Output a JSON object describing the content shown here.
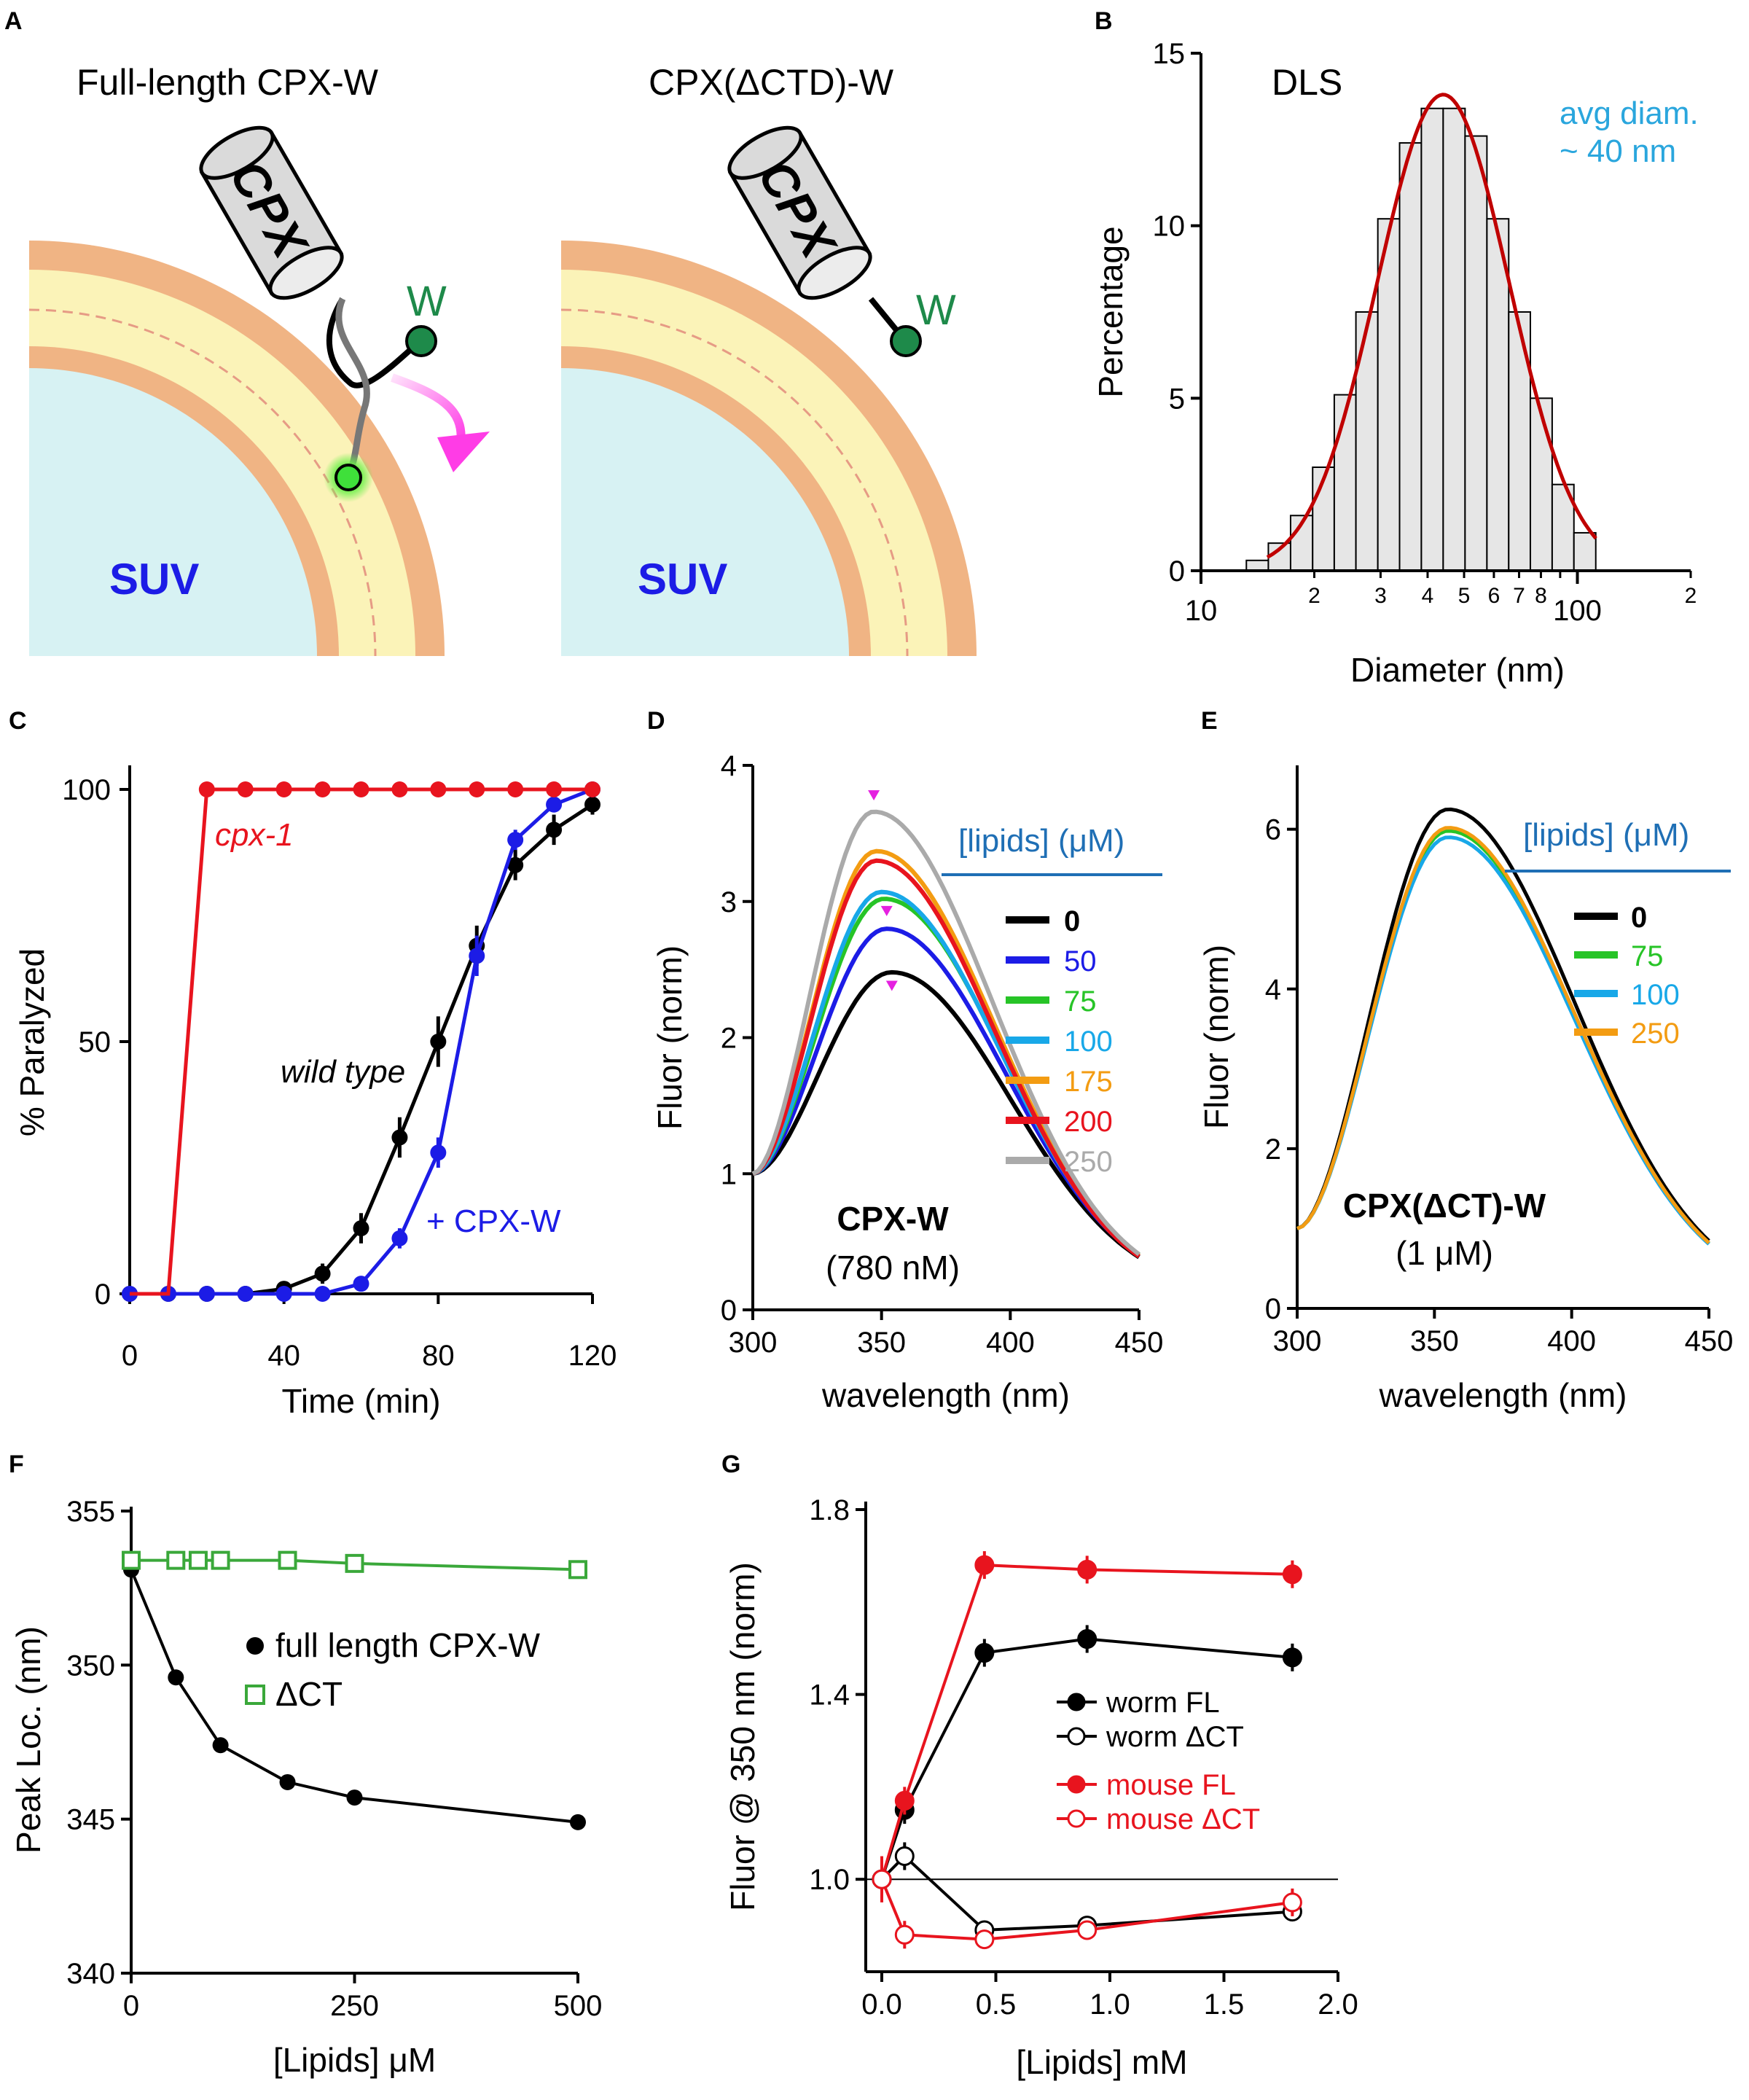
{
  "panels": {
    "A": {
      "letter": "A",
      "left_title": "Full-length CPX-W",
      "right_title": "CPX(ΔCTD)-W",
      "cpx_label": "CPX",
      "w_label": "W",
      "suv_label": "SUV",
      "colors": {
        "outer_membrane": "#f0b484",
        "inner_membrane": "#fbf3b8",
        "vesicle_lumen": "#d7f2f3",
        "tryptophan": "#1e8a4a",
        "arrow": "#ff3ce6"
      }
    },
    "B": {
      "letter": "B",
      "label": "DLS",
      "annotation_line1": "avg diam.",
      "annotation_line2": "~ 40 nm"
    },
    "C": {
      "letter": "C",
      "label_cpx1": "cpx-1",
      "label_wt": "wild type",
      "label_cpxw": "+ CPX-W"
    },
    "D": {
      "letter": "D",
      "label_construct": "CPX-W",
      "label_conc": "(780 nM)",
      "legend_title": "[lipids] (μM)"
    },
    "E": {
      "letter": "E",
      "label_construct": "CPX(ΔCT)-W",
      "label_conc": "(1 μM)",
      "legend_title": "[lipids] (μM)"
    },
    "F": {
      "letter": "F"
    },
    "G": {
      "letter": "G"
    }
  },
  "chart_data": [
    {
      "id": "B",
      "type": "bar",
      "title": "DLS",
      "xlabel": "Diameter (nm)",
      "ylabel": "Percentage",
      "xscale": "log",
      "xlim": [
        10,
        200
      ],
      "ylim": [
        0,
        15
      ],
      "yticks": [
        0,
        5,
        10,
        15
      ],
      "xtick_labels": [
        {
          "v": 10,
          "t": "10"
        },
        {
          "v": 20,
          "t": "2"
        },
        {
          "v": 30,
          "t": "3"
        },
        {
          "v": 40,
          "t": "4"
        },
        {
          "v": 50,
          "t": "5"
        },
        {
          "v": 60,
          "t": "6"
        },
        {
          "v": 70,
          "t": "7"
        },
        {
          "v": 80,
          "t": "8"
        },
        {
          "v": 100,
          "t": "100"
        },
        {
          "v": 200,
          "t": "2"
        }
      ],
      "bin_edges": [
        13.2,
        15.1,
        17.3,
        19.8,
        22.6,
        25.8,
        29.5,
        33.7,
        38.5,
        44.0,
        50.3,
        57.5,
        65.7,
        75.0,
        85.7,
        97.9,
        111.9
      ],
      "values": [
        0.3,
        0.8,
        1.6,
        3.0,
        5.1,
        7.5,
        10.2,
        12.4,
        13.4,
        13.4,
        12.6,
        10.2,
        7.5,
        5.0,
        2.5,
        1.1
      ],
      "fit": {
        "name": "lognormal fit",
        "amplitude": 13.8,
        "center": 44,
        "sigma_log10": 0.175,
        "range": [
          15,
          112
        ],
        "color": "#c00000"
      }
    },
    {
      "id": "C",
      "type": "line",
      "xlabel": "Time (min)",
      "ylabel": "% Paralyzed",
      "xlim": [
        0,
        120
      ],
      "ylim": [
        0,
        100
      ],
      "xticks": [
        0,
        40,
        80,
        120
      ],
      "yticks": [
        0,
        50,
        100
      ],
      "series": [
        {
          "name": "cpx-1",
          "color": "#e8141e",
          "x": [
            0,
            10,
            20,
            30,
            40,
            50,
            60,
            70,
            80,
            90,
            100,
            110,
            120
          ],
          "y": [
            0,
            0,
            100,
            100,
            100,
            100,
            100,
            100,
            100,
            100,
            100,
            100,
            100
          ],
          "err": [
            0,
            0,
            0,
            0,
            0,
            0,
            0,
            0,
            0,
            0,
            0,
            0,
            0
          ],
          "markers_from": 2
        },
        {
          "name": "wild type",
          "color": "#000000",
          "x": [
            0,
            10,
            20,
            30,
            40,
            50,
            60,
            70,
            80,
            90,
            100,
            110,
            120
          ],
          "y": [
            0,
            0,
            0,
            0,
            1,
            4,
            13,
            31,
            50,
            69,
            85,
            92,
            97
          ],
          "err": [
            0,
            0,
            0,
            0,
            0,
            2,
            3,
            4,
            5,
            4,
            3,
            3,
            2
          ],
          "markers_from": 0
        },
        {
          "name": "+ CPX-W",
          "color": "#1c1ce6",
          "x": [
            0,
            10,
            20,
            30,
            40,
            50,
            60,
            70,
            80,
            90,
            100,
            110,
            120
          ],
          "y": [
            0,
            0,
            0,
            0,
            0,
            0,
            2,
            11,
            28,
            67,
            90,
            97,
            100
          ],
          "err": [
            0,
            0,
            0,
            0,
            0,
            0,
            0,
            2,
            3,
            4,
            2,
            1,
            0
          ],
          "markers_from": 0
        }
      ]
    },
    {
      "id": "D",
      "type": "line",
      "xlabel": "wavelength (nm)",
      "ylabel": "Fluor (norm)",
      "xlim": [
        300,
        450
      ],
      "ylim": [
        0,
        4
      ],
      "xticks": [
        300,
        350,
        400,
        450
      ],
      "yticks": [
        0,
        1,
        2,
        3,
        4
      ],
      "series": [
        {
          "name": "0",
          "color": "#000000",
          "peak_x": 354,
          "peak_y": 2.48
        },
        {
          "name": "50",
          "color": "#1c1ce6",
          "peak_x": 352,
          "peak_y": 2.8
        },
        {
          "name": "75",
          "color": "#27c427",
          "peak_x": 351,
          "peak_y": 3.02
        },
        {
          "name": "100",
          "color": "#18a8e8",
          "peak_x": 350,
          "peak_y": 3.07
        },
        {
          "name": "175",
          "color": "#f39c12",
          "peak_x": 348,
          "peak_y": 3.37
        },
        {
          "name": "200",
          "color": "#e8141e",
          "peak_x": 348,
          "peak_y": 3.3
        },
        {
          "name": "250",
          "color": "#aaaaaa",
          "peak_x": 347,
          "peak_y": 3.66
        }
      ],
      "peak_markers": [
        {
          "x": 347,
          "y": 3.78
        },
        {
          "x": 352,
          "y": 2.93
        },
        {
          "x": 354,
          "y": 2.38
        }
      ],
      "peak_marker_color": "#e520e0"
    },
    {
      "id": "E",
      "type": "line",
      "xlabel": "wavelength (nm)",
      "ylabel": "Fluor (norm)",
      "xlim": [
        300,
        450
      ],
      "ylim": [
        0,
        6.8
      ],
      "xticks": [
        300,
        350,
        400,
        450
      ],
      "yticks": [
        0,
        2,
        4,
        6
      ],
      "series": [
        {
          "name": "0",
          "color": "#000000",
          "peak_x": 355,
          "peak_y": 6.25
        },
        {
          "name": "75",
          "color": "#27c427",
          "peak_x": 355,
          "peak_y": 5.98
        },
        {
          "name": "100",
          "color": "#18a8e8",
          "peak_x": 355,
          "peak_y": 5.9
        },
        {
          "name": "250",
          "color": "#f39c12",
          "peak_x": 355,
          "peak_y": 6.02
        }
      ]
    },
    {
      "id": "F",
      "type": "line",
      "xlabel": "[Lipids] μM",
      "ylabel": "Peak Loc. (nm)",
      "xlim": [
        0,
        500
      ],
      "ylim": [
        340,
        355
      ],
      "xticks": [
        0,
        250,
        500
      ],
      "yticks": [
        340,
        345,
        350,
        355
      ],
      "series": [
        {
          "name": "full length CPX-W",
          "color": "#000000",
          "marker": "filled-circle",
          "x": [
            0,
            50,
            100,
            175,
            250,
            500
          ],
          "y": [
            353.1,
            349.6,
            347.4,
            346.2,
            345.7,
            344.9
          ]
        },
        {
          "name": "ΔCT",
          "color": "#3aa83a",
          "marker": "open-square",
          "x": [
            0,
            50,
            75,
            100,
            175,
            250,
            500
          ],
          "y": [
            353.4,
            353.4,
            353.4,
            353.4,
            353.4,
            353.3,
            353.1
          ]
        }
      ]
    },
    {
      "id": "G",
      "type": "line",
      "xlabel": "[Lipids] mM",
      "ylabel": "Fluor @ 350 nm (norm)",
      "xlim": [
        -0.1,
        2.0
      ],
      "ylim": [
        0.8,
        1.8
      ],
      "xticks": [
        0.0,
        0.5,
        1.0,
        1.5,
        2.0
      ],
      "xtick_labels": [
        "0.0",
        "0.5",
        "1.0",
        "1.5",
        "2.0"
      ],
      "yticks": [
        1.0,
        1.4,
        1.8
      ],
      "ytick_labels": [
        "1.0",
        "1.4",
        "1.8"
      ],
      "reference_line": 1.0,
      "series": [
        {
          "name": "worm FL",
          "color": "#000000",
          "filled": true,
          "x": [
            0,
            0.1,
            0.45,
            0.9,
            1.8
          ],
          "y": [
            1.0,
            1.15,
            1.49,
            1.52,
            1.48
          ],
          "err": [
            0.03,
            0.03,
            0.03,
            0.03,
            0.03
          ]
        },
        {
          "name": "worm ΔCT",
          "color": "#000000",
          "filled": false,
          "x": [
            0,
            0.1,
            0.45,
            0.9,
            1.8
          ],
          "y": [
            1.0,
            1.05,
            0.89,
            0.9,
            0.93
          ],
          "err": [
            0.03,
            0.03,
            0.02,
            0.02,
            0.02
          ]
        },
        {
          "name": "mouse FL",
          "color": "#e8141e",
          "filled": true,
          "x": [
            0,
            0.1,
            0.45,
            0.9,
            1.8
          ],
          "y": [
            1.0,
            1.17,
            1.68,
            1.67,
            1.66
          ],
          "err": [
            0.04,
            0.03,
            0.03,
            0.03,
            0.03
          ]
        },
        {
          "name": "mouse ΔCT",
          "color": "#e8141e",
          "filled": false,
          "x": [
            0,
            0.1,
            0.45,
            0.9,
            1.8
          ],
          "y": [
            1.0,
            0.88,
            0.87,
            0.89,
            0.95
          ],
          "err": [
            0.05,
            0.03,
            0.02,
            0.02,
            0.03
          ]
        }
      ]
    }
  ]
}
